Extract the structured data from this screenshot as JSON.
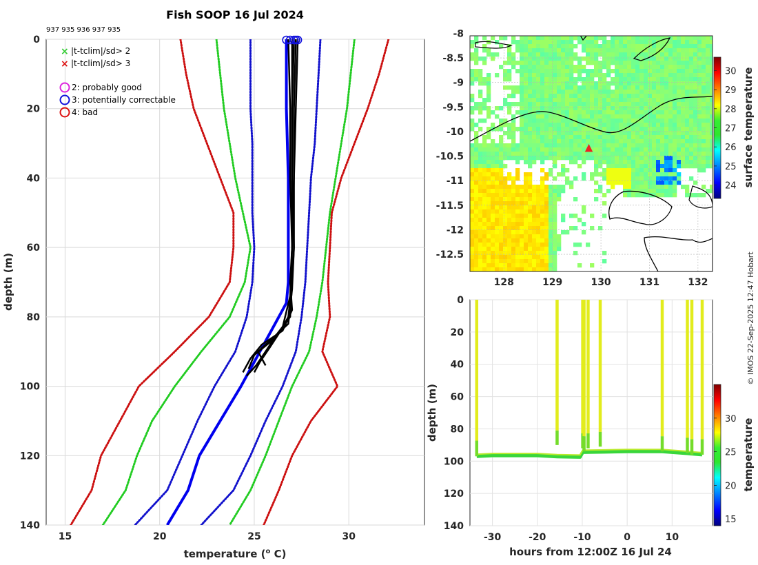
{
  "profile_chart": {
    "title": "Fish SOOP 16 Jul 2024",
    "profile_ids": "937 935 936 937 935",
    "xlabel": "temperature (",
    "xlabel_sup": "o",
    "xlabel_end": " C)",
    "ylabel": "depth (m)",
    "xlim": [
      14,
      34
    ],
    "ylim": [
      0,
      140
    ],
    "xticks": [
      "15",
      "20",
      "25",
      "30"
    ],
    "yticks": [
      "0",
      "20",
      "40",
      "60",
      "80",
      "100",
      "120",
      "140"
    ],
    "legend": [
      {
        "symbol": "×",
        "color": "#33cc33",
        "label": "|t-tclim|/sd> 2"
      },
      {
        "symbol": "×",
        "color": "#dd1111",
        "label": "|t-tclim|/sd> 3"
      },
      {
        "symbol": "○",
        "color": "#dd22dd",
        "label": "2: probably good"
      },
      {
        "symbol": "○",
        "color": "#1111dd",
        "label": "3: potentially correctable"
      },
      {
        "symbol": "○",
        "color": "#dd1111",
        "label": "4: bad"
      }
    ],
    "depth": [
      0,
      10,
      20,
      30,
      40,
      50,
      60,
      70,
      80,
      90,
      100,
      110,
      120,
      130,
      140
    ],
    "envelopes": [
      {
        "name": "red-left",
        "color": "#cc1111",
        "x": [
          21.1,
          21.4,
          21.8,
          22.5,
          23.2,
          23.9,
          23.9,
          23.7,
          22.6,
          20.8,
          18.9,
          17.9,
          16.9,
          16.4,
          15.3
        ]
      },
      {
        "name": "green-left",
        "color": "#22cc22",
        "x": [
          23.0,
          23.2,
          23.4,
          23.7,
          24.0,
          24.4,
          24.8,
          24.5,
          23.7,
          22.2,
          20.8,
          19.6,
          18.8,
          18.2,
          17.0
        ]
      },
      {
        "name": "blue-left",
        "color": "#1111cc",
        "x": [
          24.8,
          24.8,
          24.8,
          24.9,
          24.9,
          24.9,
          25.0,
          24.9,
          24.6,
          24.0,
          22.9,
          22.0,
          21.2,
          20.4,
          18.7
        ]
      },
      {
        "name": "blue-right",
        "color": "#1111cc",
        "x": [
          28.5,
          28.4,
          28.3,
          28.2,
          28.0,
          27.9,
          27.8,
          27.7,
          27.5,
          27.2,
          26.5,
          25.6,
          24.8,
          23.9,
          22.2
        ]
      },
      {
        "name": "green-right",
        "color": "#22cc22",
        "x": [
          30.3,
          30.1,
          29.9,
          29.6,
          29.3,
          29.0,
          28.8,
          28.6,
          28.3,
          27.9,
          27.0,
          26.3,
          25.6,
          24.8,
          23.7
        ]
      },
      {
        "name": "red-right",
        "color": "#cc1111",
        "x": [
          32.1,
          31.6,
          31.0,
          30.3,
          29.6,
          29.1,
          29.0,
          28.9,
          29.0,
          28.6,
          29.4,
          28.0,
          27.0,
          26.3,
          25.5
        ]
      }
    ],
    "climatology": {
      "color": "#0000ee",
      "depth": [
        0,
        10,
        20,
        40,
        60,
        70,
        76,
        80,
        90,
        100,
        110,
        120,
        130,
        140
      ],
      "x": [
        26.7,
        26.7,
        26.7,
        26.8,
        26.8,
        26.8,
        26.7,
        26.3,
        25.3,
        24.3,
        23.2,
        22.1,
        21.5,
        20.4
      ]
    },
    "profiles": [
      {
        "depth": [
          0,
          20,
          40,
          60,
          70,
          78,
          84,
          88,
          92,
          96
        ],
        "x": [
          26.8,
          26.9,
          26.9,
          27.0,
          26.9,
          27.0,
          26.5,
          25.4,
          24.8,
          24.4
        ]
      },
      {
        "depth": [
          0,
          20,
          40,
          60,
          70,
          80,
          85,
          90,
          94,
          97
        ],
        "x": [
          27.0,
          27.0,
          27.0,
          27.1,
          27.0,
          26.9,
          26.2,
          25.6,
          25.1,
          24.6
        ]
      },
      {
        "depth": [
          0,
          20,
          40,
          60,
          72,
          82,
          86,
          90,
          94
        ],
        "x": [
          27.2,
          27.1,
          27.1,
          27.1,
          27.0,
          26.8,
          26.0,
          25.2,
          25.6
        ]
      },
      {
        "depth": [
          0,
          20,
          40,
          60,
          74,
          83,
          87,
          91,
          95
        ],
        "x": [
          27.3,
          27.2,
          27.1,
          27.0,
          26.9,
          26.5,
          25.9,
          25.0,
          24.7
        ]
      },
      {
        "depth": [
          0,
          20,
          40,
          60,
          75,
          80,
          84,
          89,
          93,
          96
        ],
        "x": [
          27.1,
          27.0,
          27.0,
          27.0,
          26.9,
          26.8,
          26.4,
          25.8,
          25.3,
          25.0
        ]
      }
    ],
    "surface_markers": [
      26.7,
      26.9,
      27.1,
      27.3,
      27.2
    ]
  },
  "map_chart": {
    "xticks": [
      "128",
      "129",
      "130",
      "131",
      "132"
    ],
    "yticks": [
      "-8",
      "-8.5",
      "-9",
      "-9.5",
      "-10",
      "-10.5",
      "-11",
      "-11.5",
      "-12",
      "-12.5"
    ],
    "xlim": [
      127.3,
      132.3
    ],
    "ylim": [
      -12.85,
      -8.05
    ],
    "marker": {
      "lon": 129.75,
      "lat": -10.32,
      "symbol": "▲",
      "color": "#ee2222"
    },
    "colorbar_label": "surface temperature",
    "colorbar_ticks": [
      "24",
      "25",
      "26",
      "27",
      "28",
      "29",
      "30"
    ],
    "colorbar_range": [
      23.3,
      30.7
    ]
  },
  "timeseries_chart": {
    "xlabel": "hours from 12:00Z 16 Jul 24",
    "ylabel": "depth (m)",
    "xticks": [
      "-30",
      "-20",
      "-10",
      "0",
      "10"
    ],
    "yticks": [
      "0",
      "20",
      "40",
      "60",
      "80",
      "100",
      "120",
      "140"
    ],
    "xlim": [
      -35,
      19
    ],
    "ylim": [
      0,
      140
    ],
    "colorbar_label": "temperature",
    "colorbar_ticks": [
      "15",
      "20",
      "25",
      "30"
    ],
    "colorbar_range": [
      14,
      35
    ],
    "casts": [
      {
        "t": -33.5,
        "max_depth": 97
      },
      {
        "t": -15.6,
        "max_depth": 90
      },
      {
        "t": -9.9,
        "max_depth": 92
      },
      {
        "t": -9.6,
        "max_depth": 94
      },
      {
        "t": -8.7,
        "max_depth": 92
      },
      {
        "t": -6.0,
        "max_depth": 91
      },
      {
        "t": 7.8,
        "max_depth": 94
      },
      {
        "t": 13.4,
        "max_depth": 95
      },
      {
        "t": 14.4,
        "max_depth": 96
      },
      {
        "t": 16.7,
        "max_depth": 96
      }
    ],
    "bottom_track": {
      "t": [
        -33.5,
        -30,
        -20,
        -15.6,
        -10.5,
        -9.9,
        -5,
        0,
        7.8,
        10,
        13.4,
        16.7
      ],
      "depth": [
        97,
        96.5,
        96.5,
        97.2,
        97.5,
        94.5,
        94.3,
        94.0,
        94.0,
        94.5,
        95.2,
        96.0
      ]
    }
  },
  "credit": "© IMOS 22-Sep-2025 12:47 Hobart"
}
